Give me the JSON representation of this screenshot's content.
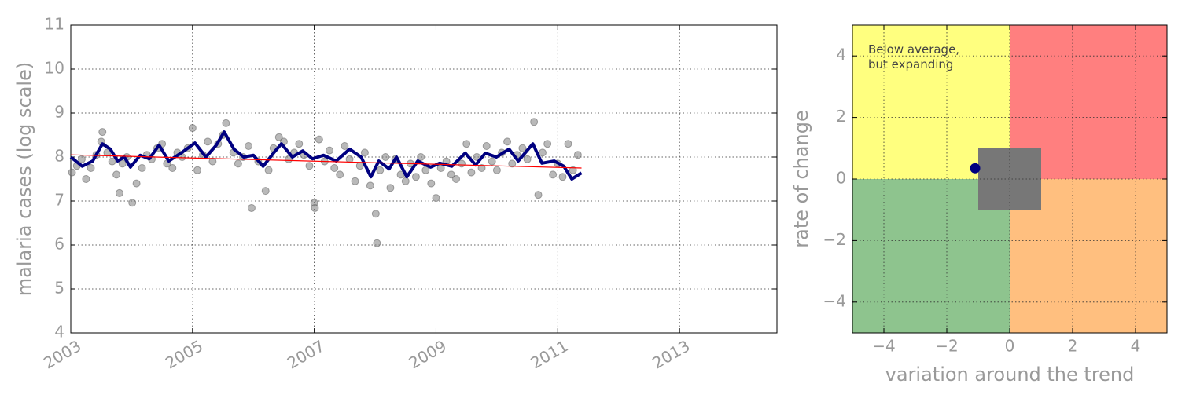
{
  "chart_data": [
    {
      "type": "scatter",
      "ylabel": "malaria cases (log scale)",
      "xlim": [
        2003,
        2014.6
      ],
      "ylim": [
        4,
        11
      ],
      "xticks": [
        2003,
        2005,
        2007,
        2009,
        2011,
        2013
      ],
      "yticks": [
        4,
        5,
        6,
        7,
        8,
        9,
        10,
        11
      ],
      "grid": true,
      "series": [
        {
          "type": "scatter",
          "color": "#808080",
          "x": [
            2003.02,
            2003.1,
            2003.18,
            2003.25,
            2003.33,
            2003.42,
            2003.5,
            2003.52,
            2003.6,
            2003.68,
            2003.75,
            2003.8,
            2003.85,
            2003.92,
            2004.01,
            2004.08,
            2004.17,
            2004.25,
            2004.33,
            2004.42,
            2004.5,
            2004.58,
            2004.67,
            2004.75,
            2004.83,
            2004.92,
            2005.0,
            2005.08,
            2005.17,
            2005.25,
            2005.33,
            2005.42,
            2005.5,
            2005.55,
            2005.67,
            2005.75,
            2005.83,
            2005.92,
            2005.97,
            2006.08,
            2006.2,
            2006.25,
            2006.33,
            2006.42,
            2006.5,
            2006.58,
            2006.67,
            2006.75,
            2006.83,
            2006.92,
            2007.0,
            2007.01,
            2007.08,
            2007.17,
            2007.25,
            2007.33,
            2007.42,
            2007.5,
            2007.58,
            2007.67,
            2007.75,
            2007.83,
            2007.92,
            2008.01,
            2008.03,
            2008.08,
            2008.17,
            2008.25,
            2008.33,
            2008.42,
            2008.5,
            2008.58,
            2008.67,
            2008.75,
            2008.83,
            2008.92,
            2009.0,
            2009.08,
            2009.17,
            2009.25,
            2009.33,
            2009.42,
            2009.5,
            2009.58,
            2009.67,
            2009.75,
            2009.83,
            2009.92,
            2010.0,
            2010.08,
            2010.17,
            2010.25,
            2010.33,
            2010.42,
            2010.5,
            2010.61,
            2010.68,
            2010.75,
            2010.83,
            2010.92,
            2011.0,
            2011.08,
            2011.17,
            2011.25,
            2011.33
          ],
          "values": [
            7.65,
            7.8,
            7.95,
            7.5,
            7.75,
            8.05,
            8.35,
            8.57,
            8.1,
            7.9,
            7.6,
            7.18,
            7.85,
            8.0,
            6.96,
            7.4,
            7.75,
            8.05,
            7.95,
            8.2,
            8.3,
            7.85,
            7.75,
            8.1,
            8.0,
            8.2,
            8.66,
            7.7,
            8.05,
            8.35,
            7.9,
            8.3,
            8.5,
            8.77,
            8.1,
            7.85,
            8.0,
            8.25,
            6.84,
            7.9,
            7.23,
            7.7,
            8.2,
            8.45,
            8.35,
            7.95,
            8.1,
            8.3,
            8.05,
            7.8,
            6.96,
            6.84,
            8.4,
            7.9,
            8.15,
            7.75,
            7.6,
            8.25,
            7.95,
            7.45,
            7.8,
            8.1,
            7.35,
            6.71,
            6.04,
            7.7,
            8.0,
            7.3,
            7.95,
            7.6,
            7.45,
            7.85,
            7.55,
            8.0,
            7.7,
            7.4,
            7.07,
            7.75,
            7.9,
            7.6,
            7.5,
            7.85,
            8.3,
            7.65,
            8.0,
            7.75,
            8.25,
            7.9,
            7.7,
            8.1,
            8.35,
            7.85,
            8.05,
            8.2,
            7.95,
            8.8,
            7.14,
            8.1,
            8.3,
            7.6,
            7.85,
            7.55,
            8.3,
            7.7,
            8.05
          ]
        },
        {
          "type": "line",
          "color": "#000080",
          "x": [
            2003.0,
            2003.19,
            2003.36,
            2003.52,
            2003.65,
            2003.77,
            2003.88,
            2003.98,
            2004.14,
            2004.29,
            2004.45,
            2004.61,
            2004.81,
            2005.04,
            2005.22,
            2005.39,
            2005.52,
            2005.68,
            2005.84,
            2006.0,
            2006.16,
            2006.33,
            2006.46,
            2006.64,
            2006.81,
            2006.97,
            2007.15,
            2007.36,
            2007.58,
            2007.77,
            2007.93,
            2008.06,
            2008.23,
            2008.35,
            2008.52,
            2008.7,
            2008.91,
            2009.06,
            2009.26,
            2009.48,
            2009.65,
            2009.81,
            2009.99,
            2010.2,
            2010.35,
            2010.59,
            2010.74,
            2010.94,
            2011.1,
            2011.23,
            2011.39
          ],
          "values": [
            8.0,
            7.79,
            7.91,
            8.3,
            8.18,
            7.91,
            8.0,
            7.77,
            8.04,
            7.96,
            8.27,
            7.91,
            8.09,
            8.32,
            8.0,
            8.27,
            8.57,
            8.18,
            8.0,
            8.04,
            7.79,
            8.09,
            8.3,
            8.0,
            8.14,
            7.96,
            8.04,
            7.91,
            8.18,
            8.0,
            7.55,
            7.91,
            7.73,
            8.0,
            7.55,
            7.91,
            7.77,
            7.86,
            7.79,
            8.09,
            7.82,
            8.09,
            8.0,
            8.18,
            7.91,
            8.3,
            7.86,
            7.91,
            7.79,
            7.5,
            7.64
          ]
        },
        {
          "type": "line",
          "color": "#ff0000",
          "x": [
            2003.0,
            2011.39
          ],
          "values": [
            8.05,
            7.75
          ]
        }
      ]
    },
    {
      "type": "quadrant",
      "xlabel": "variation around the trend",
      "ylabel": "rate of change",
      "xlim": [
        -5,
        5
      ],
      "ylim": [
        -5,
        5
      ],
      "xticks": [
        {
          "value": -4,
          "label": "−4"
        },
        {
          "value": -2,
          "label": "−2"
        },
        0,
        2,
        4
      ],
      "yticks": [
        {
          "value": -4,
          "label": "−4"
        },
        {
          "value": -2,
          "label": "−2"
        },
        0,
        2,
        4
      ],
      "grid": true,
      "regions": [
        {
          "x": [
            -5,
            0
          ],
          "y": [
            0,
            5
          ],
          "color": "#ffff7f"
        },
        {
          "x": [
            0,
            5
          ],
          "y": [
            0,
            5
          ],
          "color": "#ff7f7f"
        },
        {
          "x": [
            -5,
            0
          ],
          "y": [
            -5,
            0
          ],
          "color": "#8ec48e"
        },
        {
          "x": [
            0,
            5
          ],
          "y": [
            -5,
            0
          ],
          "color": "#ffbf7f"
        },
        {
          "x": [
            -1,
            1
          ],
          "y": [
            -1,
            1
          ],
          "color": "#777777"
        }
      ],
      "point": {
        "x": -1.1,
        "y": 0.35,
        "color": "#000080"
      },
      "annotation": [
        "Below average,",
        "but expanding"
      ]
    }
  ]
}
